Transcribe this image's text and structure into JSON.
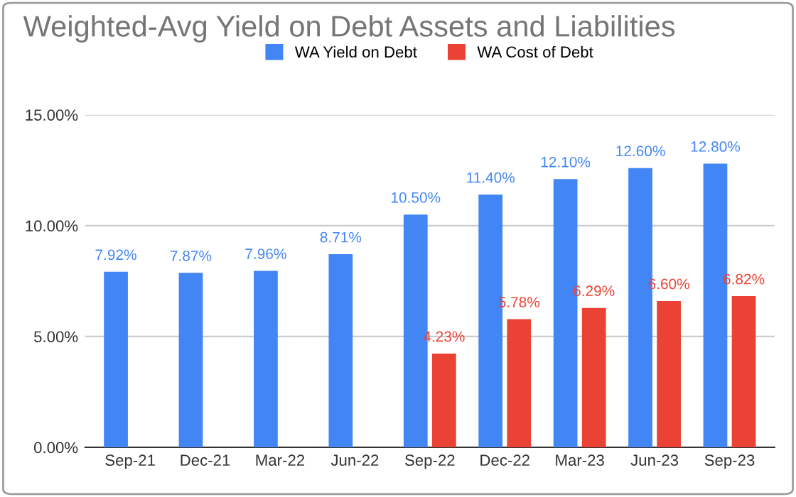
{
  "chart_data": {
    "type": "bar",
    "title": "Weighted-Avg Yield on Debt Assets and Liabilities",
    "categories": [
      "Sep-21",
      "Dec-21",
      "Mar-22",
      "Jun-22",
      "Sep-22",
      "Dec-22",
      "Mar-23",
      "Jun-23",
      "Sep-23"
    ],
    "series": [
      {
        "name": "WA Yield on Debt",
        "color": "#4285f4",
        "values": [
          7.92,
          7.87,
          7.96,
          8.71,
          10.5,
          11.4,
          12.1,
          12.6,
          12.8
        ],
        "value_labels": [
          "7.92%",
          "7.87%",
          "7.96%",
          "8.71%",
          "10.50%",
          "11.40%",
          "12.10%",
          "12.60%",
          "12.80%"
        ]
      },
      {
        "name": "WA Cost of Debt",
        "color": "#ea4335",
        "values": [
          null,
          null,
          null,
          null,
          4.23,
          5.78,
          6.29,
          6.6,
          6.82
        ],
        "value_labels": [
          null,
          null,
          null,
          null,
          "4.23%",
          "5.78%",
          "6.29%",
          "6.60%",
          "6.82%"
        ]
      }
    ],
    "ylim": [
      0,
      15
    ],
    "yticks": [
      {
        "value": 0,
        "label": "0.00%"
      },
      {
        "value": 5,
        "label": "5.00%"
      },
      {
        "value": 10,
        "label": "10.00%"
      },
      {
        "value": 15,
        "label": "15.00%"
      }
    ],
    "grid": "y",
    "legend": "top"
  }
}
